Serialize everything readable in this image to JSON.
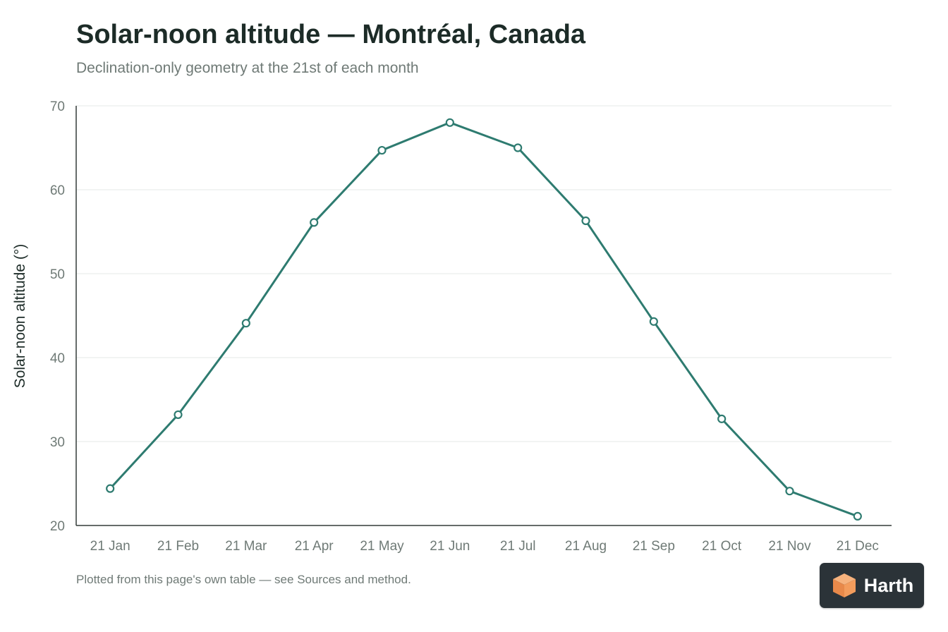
{
  "header": {
    "title": "Solar-noon altitude — Montréal, Canada",
    "subtitle": "Declination-only geometry at the 21st of each month"
  },
  "footnote": "Plotted from this page's own table — see Sources and method.",
  "brand": {
    "name": "Harth",
    "icon": "cube-logo-icon"
  },
  "colors": {
    "line": "#2e7b70",
    "grid": "#e6e8e7",
    "axis": "#333b39",
    "text": "#6f7a76"
  },
  "chart_data": {
    "type": "line",
    "title": "Solar-noon altitude — Montréal, Canada",
    "subtitle": "Declination-only geometry at the 21st of each month",
    "xlabel": "",
    "ylabel": "Solar-noon altitude (°)",
    "categories": [
      "21 Jan",
      "21 Feb",
      "21 Mar",
      "21 Apr",
      "21 May",
      "21 Jun",
      "21 Jul",
      "21 Aug",
      "21 Sep",
      "21 Oct",
      "21 Nov",
      "21 Dec"
    ],
    "values": [
      24.4,
      33.2,
      44.1,
      56.1,
      64.7,
      68.0,
      65.0,
      56.3,
      44.3,
      32.7,
      24.1,
      21.1
    ],
    "ylim": [
      20,
      70
    ],
    "yticks": [
      20,
      30,
      40,
      50,
      60,
      70
    ],
    "grid": true,
    "legend": "none",
    "markers": "hollow-circle"
  }
}
